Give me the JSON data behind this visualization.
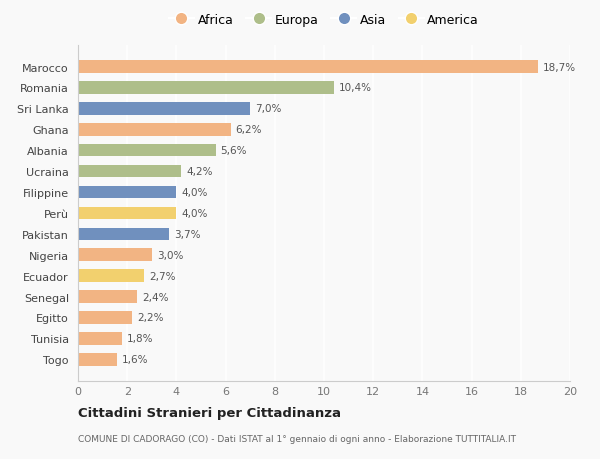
{
  "countries": [
    "Marocco",
    "Romania",
    "Sri Lanka",
    "Ghana",
    "Albania",
    "Ucraina",
    "Filippine",
    "Perù",
    "Pakistan",
    "Nigeria",
    "Ecuador",
    "Senegal",
    "Egitto",
    "Tunisia",
    "Togo"
  ],
  "values": [
    18.7,
    10.4,
    7.0,
    6.2,
    5.6,
    4.2,
    4.0,
    4.0,
    3.7,
    3.0,
    2.7,
    2.4,
    2.2,
    1.8,
    1.6
  ],
  "regions": [
    "Africa",
    "Europa",
    "Asia",
    "Africa",
    "Europa",
    "Europa",
    "Asia",
    "America",
    "Asia",
    "Africa",
    "America",
    "Africa",
    "Africa",
    "Africa",
    "Africa"
  ],
  "colors": {
    "Africa": "#F2B483",
    "Europa": "#AEBE8A",
    "Asia": "#7090BE",
    "America": "#F2D06E"
  },
  "xlim": [
    0,
    20
  ],
  "xticks": [
    0,
    2,
    4,
    6,
    8,
    10,
    12,
    14,
    16,
    18,
    20
  ],
  "title": "Cittadini Stranieri per Cittadinanza",
  "subtitle": "COMUNE DI CADORAGO (CO) - Dati ISTAT al 1° gennaio di ogni anno - Elaborazione TUTTITALIA.IT",
  "background_color": "#f9f9f9",
  "grid_color": "#ffffff",
  "bar_height": 0.6,
  "legend_order": [
    "Africa",
    "Europa",
    "Asia",
    "America"
  ]
}
